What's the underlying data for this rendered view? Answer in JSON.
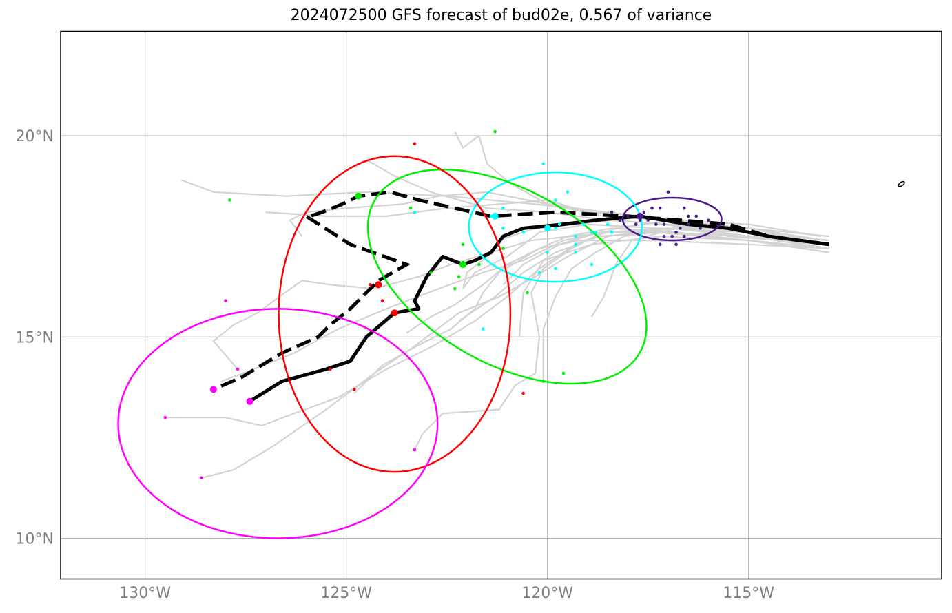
{
  "chart_data": {
    "type": "scatter",
    "title": "2024072500 GFS forecast of bud02e, 0.567 of variance",
    "xlabel": "",
    "ylabel": "",
    "xlim": [
      -132.1,
      -110.2
    ],
    "ylim": [
      9.0,
      22.6
    ],
    "grid": true,
    "x_ticks": [
      -130,
      -125,
      -120,
      -115
    ],
    "x_tick_labels": [
      "130°W",
      "125°W",
      "120°W",
      "115°W"
    ],
    "y_ticks": [
      10,
      15,
      20
    ],
    "y_tick_labels": [
      "10°N",
      "15°N",
      "20°N"
    ],
    "colors": {
      "ensemble": "#d3d3d3",
      "mean_track": "#000000",
      "purple": "#4b1a8c",
      "cyan": "#00ffff",
      "green": "#00ee00",
      "red": "#ff0000",
      "magenta": "#ff00ff",
      "grid": "#b0b0b0"
    },
    "ensemble_tracks": [
      [
        [
          -113.1,
          17.3
        ],
        [
          -115,
          17.7
        ],
        [
          -117,
          17.9
        ],
        [
          -118.5,
          18.1
        ],
        [
          -120.3,
          18.3
        ],
        [
          -122.5,
          18.5
        ],
        [
          -124.5,
          18.6
        ],
        [
          -126.5,
          18.5
        ],
        [
          -128.3,
          18.6
        ],
        [
          -129.1,
          18.9
        ]
      ],
      [
        [
          -113.0,
          17.4
        ],
        [
          -115,
          17.6
        ],
        [
          -117,
          17.8
        ],
        [
          -118.5,
          17.9
        ],
        [
          -120,
          18.1
        ],
        [
          -121.5,
          18.2
        ],
        [
          -122.9,
          18.6
        ],
        [
          -123.8,
          19.0
        ],
        [
          -124.5,
          19.4
        ]
      ],
      [
        [
          -113.1,
          17.2
        ],
        [
          -115,
          17.6
        ],
        [
          -117,
          17.9
        ],
        [
          -118.6,
          18.0
        ],
        [
          -120,
          18.3
        ],
        [
          -120.9,
          18.8
        ],
        [
          -121.5,
          19.3
        ],
        [
          -121.7,
          20.0
        ],
        [
          -122.1,
          19.7
        ],
        [
          -122.3,
          20.1
        ]
      ],
      [
        [
          -113.0,
          17.3
        ],
        [
          -115.5,
          17.5
        ],
        [
          -117.6,
          18.0
        ],
        [
          -119,
          18.1
        ],
        [
          -120,
          18.4
        ],
        [
          -121.2,
          18.3
        ],
        [
          -122.5,
          18.2
        ],
        [
          -124,
          18.0
        ],
        [
          -125.5,
          18.0
        ],
        [
          -127,
          18.1
        ]
      ],
      [
        [
          -113.0,
          17.1
        ],
        [
          -115,
          17.4
        ],
        [
          -117.3,
          17.6
        ],
        [
          -118.6,
          17.6
        ],
        [
          -119.6,
          17.4
        ],
        [
          -120.6,
          16.9
        ],
        [
          -121.6,
          16.6
        ],
        [
          -122.7,
          16.2
        ],
        [
          -124,
          15.7
        ],
        [
          -125.2,
          15.2
        ],
        [
          -126.3,
          14.6
        ],
        [
          -127.3,
          14.2
        ],
        [
          -128.1,
          13.9
        ]
      ],
      [
        [
          -113.0,
          17.2
        ],
        [
          -115,
          17.5
        ],
        [
          -117,
          17.7
        ],
        [
          -118.5,
          17.5
        ],
        [
          -119.5,
          17.0
        ],
        [
          -120.3,
          16.5
        ],
        [
          -121.2,
          16.0
        ],
        [
          -122.2,
          15.6
        ],
        [
          -123.4,
          14.7
        ],
        [
          -124.3,
          14.1
        ],
        [
          -125.5,
          13.2
        ],
        [
          -126.8,
          12.3
        ],
        [
          -127.8,
          11.7
        ],
        [
          -128.6,
          11.5
        ]
      ],
      [
        [
          -113.2,
          17.5
        ],
        [
          -115,
          17.8
        ],
        [
          -116.9,
          17.9
        ],
        [
          -118.3,
          17.7
        ],
        [
          -119.3,
          17.3
        ],
        [
          -120.2,
          16.7
        ],
        [
          -121.0,
          16.0
        ],
        [
          -121.8,
          15.4
        ],
        [
          -122.8,
          14.8
        ],
        [
          -124.0,
          14.2
        ],
        [
          -125.2,
          13.5
        ],
        [
          -126.3,
          13.1
        ],
        [
          -127.1,
          12.8
        ],
        [
          -128.0,
          13.0
        ],
        [
          -129.5,
          13.0
        ]
      ],
      [
        [
          -113.0,
          17.3
        ],
        [
          -115,
          17.5
        ],
        [
          -117.1,
          17.6
        ],
        [
          -118.4,
          17.6
        ],
        [
          -119.4,
          17.5
        ],
        [
          -120.4,
          17.4
        ],
        [
          -121.4,
          17.1
        ],
        [
          -122.4,
          16.8
        ],
        [
          -123.2,
          16.5
        ],
        [
          -124.3,
          16.2
        ],
        [
          -125.4,
          16.3
        ],
        [
          -126.1,
          16.4
        ],
        [
          -126.8,
          15.9
        ],
        [
          -127.2,
          15.6
        ],
        [
          -127.8,
          15.3
        ],
        [
          -128.3,
          14.9
        ],
        [
          -127.7,
          14.2
        ]
      ],
      [
        [
          -113.1,
          17.4
        ],
        [
          -115,
          17.7
        ],
        [
          -116.9,
          17.7
        ],
        [
          -118.1,
          17.5
        ],
        [
          -118.8,
          17.1
        ],
        [
          -119.4,
          16.7
        ],
        [
          -119.8,
          16.0
        ],
        [
          -120.1,
          15.2
        ],
        [
          -120.1,
          14.3
        ],
        [
          -120.1,
          13.9
        ]
      ],
      [
        [
          -113.0,
          17.2
        ],
        [
          -115,
          17.5
        ],
        [
          -116.8,
          17.7
        ],
        [
          -117.9,
          17.4
        ],
        [
          -118.3,
          16.8
        ],
        [
          -118.6,
          16.0
        ],
        [
          -118.9,
          15.5
        ]
      ],
      [
        [
          -113.0,
          17.1
        ],
        [
          -115,
          17.4
        ],
        [
          -116.8,
          17.6
        ],
        [
          -118.4,
          17.7
        ],
        [
          -119.5,
          17.5
        ],
        [
          -120.2,
          17.2
        ],
        [
          -121.0,
          16.8
        ],
        [
          -121.6,
          16.3
        ],
        [
          -122.3,
          15.8
        ],
        [
          -122.9,
          15.5
        ],
        [
          -123.5,
          15.1
        ]
      ],
      [
        [
          -113.1,
          17.3
        ],
        [
          -115,
          17.5
        ],
        [
          -117.1,
          17.6
        ],
        [
          -118.7,
          17.5
        ],
        [
          -119.8,
          17.1
        ],
        [
          -120.6,
          16.6
        ],
        [
          -121.3,
          16.0
        ],
        [
          -121.9,
          15.6
        ],
        [
          -122.2,
          15.4
        ]
      ],
      [
        [
          -113.1,
          17.2
        ],
        [
          -115,
          17.4
        ],
        [
          -117.2,
          17.5
        ],
        [
          -118.9,
          17.3
        ],
        [
          -120.1,
          16.9
        ],
        [
          -120.6,
          16.1
        ],
        [
          -120.7,
          15.0
        ]
      ],
      [
        [
          -113.0,
          17.4
        ],
        [
          -115,
          17.6
        ],
        [
          -117.3,
          17.7
        ],
        [
          -119.0,
          17.8
        ],
        [
          -120.2,
          17.6
        ],
        [
          -121.0,
          17.0
        ],
        [
          -121.8,
          16.6
        ],
        [
          -122.1,
          16.2
        ]
      ],
      [
        [
          -113.0,
          17.2
        ],
        [
          -115,
          17.3
        ],
        [
          -117.4,
          17.4
        ],
        [
          -119.2,
          17.4
        ],
        [
          -120.2,
          17.2
        ],
        [
          -121.2,
          16.6
        ],
        [
          -121.6,
          16.1
        ],
        [
          -121.8,
          15.7
        ],
        [
          -122.4,
          15.2
        ],
        [
          -123.2,
          14.8
        ],
        [
          -124.1,
          14.3
        ],
        [
          -124.8,
          13.6
        ]
      ],
      [
        [
          -113.1,
          17.3
        ],
        [
          -115,
          17.5
        ],
        [
          -117,
          17.7
        ],
        [
          -118.6,
          17.6
        ],
        [
          -119.4,
          17.2
        ],
        [
          -120.1,
          16.7
        ],
        [
          -120.4,
          16.1
        ],
        [
          -120.2,
          15.0
        ],
        [
          -120.3,
          14.1
        ],
        [
          -120.8,
          13.8
        ],
        [
          -121.2,
          13.2
        ],
        [
          -122.6,
          13.1
        ],
        [
          -123.1,
          12.6
        ],
        [
          -123.3,
          12.2
        ]
      ],
      [
        [
          -113.0,
          17.2
        ],
        [
          -115,
          17.4
        ],
        [
          -117.1,
          17.6
        ],
        [
          -118.7,
          17.6
        ],
        [
          -119.7,
          17.3
        ],
        [
          -120.6,
          16.8
        ],
        [
          -121.1,
          16.3
        ]
      ],
      [
        [
          -113.0,
          17.3
        ],
        [
          -115,
          17.5
        ],
        [
          -117.1,
          17.8
        ],
        [
          -118.4,
          17.9
        ],
        [
          -119.3,
          17.8
        ],
        [
          -120.3,
          17.7
        ],
        [
          -121.2,
          17.4
        ],
        [
          -121.5,
          17.0
        ],
        [
          -122.0,
          16.6
        ],
        [
          -122.1,
          16.2
        ]
      ],
      [
        [
          -113.0,
          17.5
        ],
        [
          -115,
          17.7
        ],
        [
          -117,
          17.9
        ],
        [
          -118.6,
          18.1
        ],
        [
          -120,
          18.3
        ],
        [
          -121.5,
          18.6
        ],
        [
          -122.7,
          18.5
        ],
        [
          -123.6,
          18.3
        ],
        [
          -125.0,
          18.2
        ],
        [
          -126,
          18.1
        ],
        [
          -126.4,
          17.9
        ],
        [
          -126.1,
          17.5
        ]
      ]
    ],
    "mean_track_solid": [
      [
        -113.0,
        17.3
      ],
      [
        -114.5,
        17.5
      ],
      [
        -115.5,
        17.7
      ],
      [
        -116.5,
        17.8
      ],
      [
        -117.7,
        18.0
      ],
      [
        -118.8,
        17.9
      ],
      [
        -119.6,
        17.8
      ],
      [
        -120.6,
        17.7
      ],
      [
        -121.1,
        17.5
      ],
      [
        -121.4,
        17.1
      ],
      [
        -121.8,
        16.9
      ],
      [
        -122.1,
        16.8
      ],
      [
        -122.6,
        17.0
      ],
      [
        -123.0,
        16.5
      ],
      [
        -123.3,
        15.9
      ],
      [
        -123.2,
        15.7
      ],
      [
        -123.8,
        15.6
      ],
      [
        -124.5,
        15.0
      ],
      [
        -124.9,
        14.4
      ],
      [
        -125.5,
        14.2
      ],
      [
        -126.6,
        13.9
      ],
      [
        -127.4,
        13.4
      ]
    ],
    "mean_track_dashed": [
      [
        -113.0,
        17.3
      ],
      [
        -114.5,
        17.5
      ],
      [
        -115.5,
        17.8
      ],
      [
        -116.7,
        17.9
      ],
      [
        -118.0,
        18.0
      ],
      [
        -119.8,
        18.1
      ],
      [
        -121.4,
        18.0
      ],
      [
        -122.3,
        18.2
      ],
      [
        -123.2,
        18.4
      ],
      [
        -123.9,
        18.6
      ],
      [
        -124.7,
        18.5
      ],
      [
        -125.1,
        18.3
      ],
      [
        -125.6,
        18.1
      ],
      [
        -125.9,
        18.0
      ],
      [
        -126.0,
        18.0
      ],
      [
        -124.9,
        17.3
      ],
      [
        -123.5,
        16.8
      ],
      [
        -124.2,
        16.4
      ],
      [
        -124.9,
        15.7
      ],
      [
        -125.4,
        15.3
      ],
      [
        -125.7,
        15.0
      ],
      [
        -126.6,
        14.6
      ],
      [
        -127.6,
        14.0
      ],
      [
        -128.3,
        13.7
      ]
    ],
    "ellipses": [
      {
        "name": "purple",
        "cx": -116.9,
        "cy": 17.93,
        "rx": 1.23,
        "ry": 0.53,
        "angle": 0
      },
      {
        "name": "cyan",
        "cx": -119.8,
        "cy": 17.73,
        "rx": 2.15,
        "ry": 1.36,
        "angle": 0
      },
      {
        "name": "green",
        "cx": -121.0,
        "cy": 16.5,
        "rx": 3.8,
        "ry": 2.15,
        "angle": 30
      },
      {
        "name": "red",
        "cx": -123.8,
        "cy": 15.57,
        "rx": 2.88,
        "ry": 3.92,
        "angle": 0
      },
      {
        "name": "magenta",
        "cx": -126.7,
        "cy": 12.85,
        "rx": 3.97,
        "ry": 2.85,
        "angle": 0
      }
    ],
    "points_purple": [
      [
        -117.0,
        18.6
      ],
      [
        -116.6,
        18.2
      ],
      [
        -117.2,
        18.2
      ],
      [
        -117.4,
        18.2
      ],
      [
        -117.6,
        18.1
      ],
      [
        -116.5,
        18.0
      ],
      [
        -116.3,
        18.0
      ],
      [
        -116.0,
        17.9
      ],
      [
        -116.5,
        17.8
      ],
      [
        -117.1,
        17.8
      ],
      [
        -117.3,
        17.8
      ],
      [
        -117.5,
        17.9
      ],
      [
        -117.7,
        17.9
      ],
      [
        -116.7,
        17.7
      ],
      [
        -116.2,
        17.7
      ],
      [
        -116.8,
        17.6
      ],
      [
        -117.1,
        17.5
      ],
      [
        -116.9,
        17.5
      ],
      [
        -116.6,
        17.5
      ],
      [
        -117.2,
        17.3
      ],
      [
        -116.8,
        17.3
      ],
      [
        -118.0,
        18.0
      ],
      [
        -118.4,
        18.1
      ],
      [
        -118.2,
        17.9
      ],
      [
        -117.8,
        17.8
      ]
    ],
    "points_cyan": [
      [
        -120.1,
        19.3
      ],
      [
        -119.5,
        18.6
      ],
      [
        -119.8,
        18.4
      ],
      [
        -121.1,
        18.2
      ],
      [
        -121.4,
        18.0
      ],
      [
        -119.7,
        17.8
      ],
      [
        -118.5,
        17.8
      ],
      [
        -119.1,
        17.8
      ],
      [
        -118.8,
        17.6
      ],
      [
        -120.6,
        17.6
      ],
      [
        -121.1,
        17.7
      ],
      [
        -119.8,
        17.7
      ],
      [
        -119.3,
        17.5
      ],
      [
        -118.9,
        17.6
      ],
      [
        -119.3,
        17.3
      ],
      [
        -118.4,
        17.6
      ],
      [
        -120.0,
        17.1
      ],
      [
        -119.3,
        17.1
      ],
      [
        -118.9,
        16.8
      ],
      [
        -119.8,
        16.7
      ],
      [
        -120.2,
        16.6
      ],
      [
        -121.6,
        15.2
      ],
      [
        -123.3,
        18.1
      ]
    ],
    "points_green": [
      [
        -121.3,
        20.1
      ],
      [
        -123.4,
        18.2
      ],
      [
        -127.9,
        18.4
      ],
      [
        -124.7,
        18.5
      ],
      [
        -122.1,
        17.3
      ],
      [
        -121.1,
        17.2
      ],
      [
        -121.7,
        16.8
      ],
      [
        -122.2,
        16.5
      ],
      [
        -122.3,
        16.2
      ],
      [
        -122.9,
        16.6
      ],
      [
        -120.5,
        16.1
      ],
      [
        -119.6,
        14.1
      ],
      [
        -120.1,
        13.9
      ]
    ],
    "points_red": [
      [
        -123.3,
        19.8
      ],
      [
        -124.2,
        16.3
      ],
      [
        -124.4,
        16.3
      ],
      [
        -124.1,
        15.9
      ],
      [
        -125.4,
        14.2
      ],
      [
        -124.8,
        13.7
      ],
      [
        -120.6,
        13.6
      ]
    ],
    "points_magenta": [
      [
        -128.0,
        15.9
      ],
      [
        -127.7,
        14.2
      ],
      [
        -129.5,
        13.0
      ],
      [
        -128.6,
        11.5
      ],
      [
        -123.3,
        12.2
      ],
      [
        -128.3,
        13.7
      ]
    ],
    "large_points": [
      {
        "name": "purple",
        "x": -117.7,
        "y": 18.0
      },
      {
        "name": "cyan",
        "x": -121.3,
        "y": 18.0
      },
      {
        "name": "cyan",
        "x": -120.0,
        "y": 17.7
      },
      {
        "name": "green",
        "x": -124.7,
        "y": 18.5
      },
      {
        "name": "green",
        "x": -122.1,
        "y": 16.8
      },
      {
        "name": "red",
        "x": -124.2,
        "y": 16.3
      },
      {
        "name": "red",
        "x": -123.8,
        "y": 15.6
      },
      {
        "name": "magenta",
        "x": -128.3,
        "y": 13.7
      },
      {
        "name": "magenta",
        "x": -127.4,
        "y": 13.4
      }
    ],
    "island_marker": {
      "x": -111.2,
      "y": 18.8
    }
  }
}
